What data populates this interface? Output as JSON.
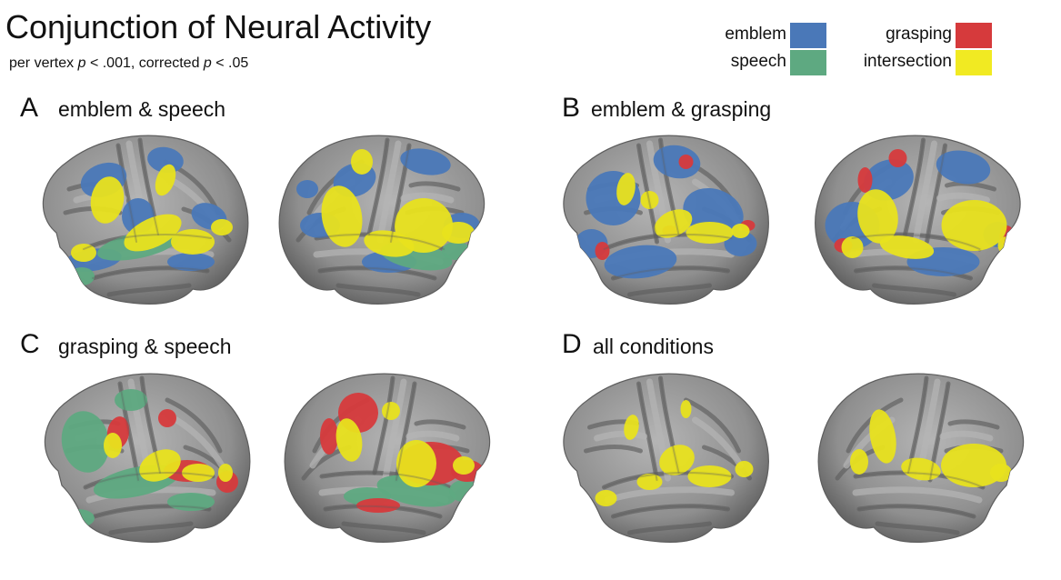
{
  "figure": {
    "title": "Conjunction of Neural Activity",
    "subtitle": {
      "part1": "per vertex ",
      "p1": "p",
      "part2": " < .001, corrected ",
      "p2": "p",
      "part3": " < .05"
    }
  },
  "legend": [
    {
      "label": "emblem",
      "color": "#4a78b8"
    },
    {
      "label": "speech",
      "color": "#5ea981"
    },
    {
      "label": "grasping",
      "color": "#d63a3c"
    },
    {
      "label": "intersection",
      "color": "#f1ea22"
    }
  ],
  "colors": {
    "emblem": "#4a78b8",
    "speech": "#5ea981",
    "grasping": "#d63a3c",
    "intersection": "#e8e21e",
    "cortex": "#8f8f8f",
    "cortex_dark": "#5e5e5e",
    "cortex_light": "#b5b5b5"
  },
  "panels": [
    {
      "letter": "A",
      "name": "emblem & speech",
      "layers": [
        "emblem",
        "speech",
        "intersection"
      ]
    },
    {
      "letter": "B",
      "name": "emblem & grasping",
      "layers": [
        "emblem",
        "grasping",
        "intersection"
      ]
    },
    {
      "letter": "C",
      "name": "grasping & speech",
      "layers": [
        "speech",
        "grasping",
        "intersection"
      ]
    },
    {
      "letter": "D",
      "name": "all conditions",
      "layers": [
        "intersection"
      ]
    }
  ]
}
